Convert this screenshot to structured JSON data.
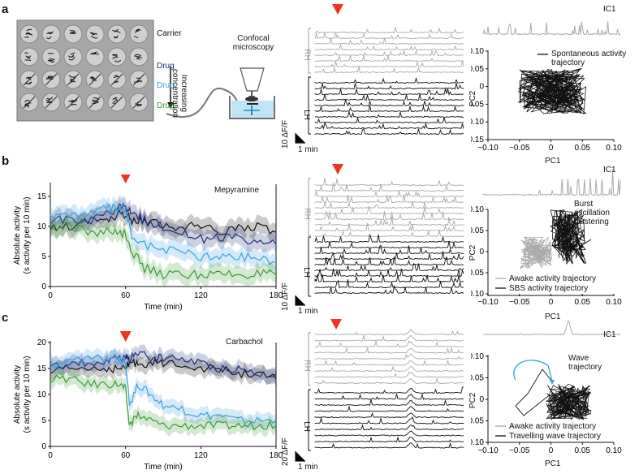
{
  "panels": {
    "a": {
      "label": "a",
      "plate_rows": [
        "Carrier",
        "Drug",
        "Drug",
        "Drug"
      ],
      "row_colors": [
        "#111111",
        "#1f2d7a",
        "#3aa0e0",
        "#3a9a33"
      ],
      "concentration_label": "Increasing concentration",
      "microscope_label": "Confocal microscopy",
      "hemisphere_labels": [
        "RH",
        "LH"
      ],
      "scale_y": "10 ΔF/F",
      "scale_x": "1 min",
      "ic_label": "IC1",
      "legend": [
        "Spontaneous activity trajectory"
      ],
      "pc1_label": "PC1",
      "pc2_label": "PC2"
    },
    "b": {
      "label": "b",
      "drug_name": "Mepyramine",
      "hemisphere_labels": [
        "RH",
        "LH"
      ],
      "scale_y": "10 ΔF/F",
      "scale_x": "1 min",
      "ic_label": "IC1",
      "annotation": "Burst oscillation clustering",
      "legend": [
        "Awake activity trajectory",
        "SBS activity trajectory"
      ],
      "pc1_label": "PC1",
      "pc2_label": "PC2"
    },
    "c": {
      "label": "c",
      "drug_name": "Carbachol",
      "hemisphere_labels": [
        "RH",
        "LH"
      ],
      "scale_y": "20 ΔF/F",
      "scale_x": "1 min",
      "ic_label": "IC1",
      "annotation": "Wave trajectory",
      "legend": [
        "Awake activity trajectory",
        "Travelling wave trajectory"
      ],
      "pc1_label": "PC1",
      "pc2_label": "PC2"
    }
  },
  "colors": {
    "carrier": "#111111",
    "drug_dark": "#1f2d7a",
    "drug_mid": "#3aa0e0",
    "drug_green": "#3a9a33",
    "arrow": "#ee3322",
    "gray": "#aaaaaa",
    "wave": "#29a8d8"
  },
  "chart_data": [
    {
      "type": "line",
      "panel": "b",
      "title": "Mepyramine",
      "xlabel": "Time (min)",
      "ylabel": "Absolute activity (s activity per 10 min)",
      "xlim": [
        0,
        180
      ],
      "ylim": [
        0,
        17
      ],
      "xticks": [
        0,
        60,
        120,
        180
      ],
      "yticks": [
        0,
        5,
        10,
        15
      ],
      "drug_time": 60,
      "x": [
        0,
        15,
        30,
        45,
        55,
        60,
        65,
        75,
        90,
        105,
        120,
        135,
        150,
        165,
        180
      ],
      "series": [
        {
          "name": "Carrier",
          "color": "#111111",
          "values": [
            10,
            10,
            11,
            11,
            12,
            12,
            11,
            11,
            10,
            10,
            10,
            9,
            10,
            10,
            9
          ]
        },
        {
          "name": "Drug high",
          "color": "#1f2d7a",
          "values": [
            11,
            11,
            11,
            12,
            13,
            13,
            12,
            11,
            10,
            9,
            8,
            8,
            8,
            7,
            7
          ]
        },
        {
          "name": "Drug mid",
          "color": "#3aa0e0",
          "values": [
            12,
            12,
            12,
            13,
            13,
            13,
            8,
            7,
            6,
            6,
            5,
            5,
            5,
            5,
            4
          ]
        },
        {
          "name": "Drug low",
          "color": "#3a9a33",
          "values": [
            10,
            10,
            9,
            9,
            9,
            9,
            6,
            3,
            2,
            2,
            2,
            2,
            2,
            2,
            2
          ]
        }
      ]
    },
    {
      "type": "line",
      "panel": "c",
      "title": "Carbachol",
      "xlabel": "Time (min)",
      "ylabel": "Absolute activity (s activity per 10 min)",
      "xlim": [
        0,
        180
      ],
      "ylim": [
        0,
        20
      ],
      "xticks": [
        0,
        60,
        120,
        180
      ],
      "yticks": [
        0,
        5,
        10,
        15,
        20
      ],
      "drug_time": 60,
      "x": [
        0,
        15,
        30,
        45,
        55,
        60,
        63,
        70,
        80,
        90,
        105,
        120,
        135,
        150,
        165,
        180
      ],
      "series": [
        {
          "name": "Carrier",
          "color": "#111111",
          "values": [
            14,
            15,
            15,
            15,
            15,
            15,
            16,
            16,
            16,
            16,
            16,
            15,
            15,
            14,
            14,
            13
          ]
        },
        {
          "name": "Drug high",
          "color": "#1f2d7a",
          "values": [
            15,
            16,
            16,
            16,
            17,
            17,
            17,
            18,
            17,
            17,
            17,
            16,
            15,
            15,
            14,
            14
          ]
        },
        {
          "name": "Drug mid",
          "color": "#3aa0e0",
          "values": [
            16,
            16,
            17,
            17,
            17,
            16,
            8,
            12,
            10,
            8,
            7,
            6,
            6,
            5,
            5,
            5
          ]
        },
        {
          "name": "Drug low",
          "color": "#3a9a33",
          "values": [
            13,
            13,
            12,
            12,
            12,
            11,
            4,
            6,
            5,
            4,
            4,
            4,
            4,
            4,
            4,
            4
          ]
        }
      ]
    },
    {
      "type": "scatter",
      "panel": "a",
      "xlabel": "PC1",
      "ylabel": "PC2",
      "xlim": [
        -0.1,
        0.1
      ],
      "ylim": [
        -0.15,
        0.1
      ],
      "xticks": [
        "−0.10",
        "−0.05",
        "0",
        "0.05",
        "0.10"
      ],
      "yticks": [
        "0.10",
        "0.05",
        "0",
        "−0.05",
        "−0.10",
        "−0.15"
      ]
    },
    {
      "type": "scatter",
      "panel": "b",
      "xlabel": "PC1",
      "ylabel": "PC2",
      "xlim": [
        -0.1,
        0.1
      ],
      "ylim": [
        -0.1,
        0.1
      ],
      "xticks": [
        "−0.10",
        "−0.05",
        "0",
        "0.05",
        "0.10"
      ],
      "yticks": [
        "0.10",
        "0.05",
        "0",
        "−0.05",
        "−0.10"
      ]
    },
    {
      "type": "scatter",
      "panel": "c",
      "xlabel": "PC1",
      "ylabel": "PC2",
      "xlim": [
        -0.1,
        0.1
      ],
      "ylim": [
        -0.1,
        0.1
      ],
      "xticks": [
        "−0.10",
        "−0.05",
        "0",
        "0.05",
        "0.10"
      ],
      "yticks": [
        "0.10",
        "0.05",
        "0",
        "−0.05",
        "−0.10"
      ]
    }
  ]
}
